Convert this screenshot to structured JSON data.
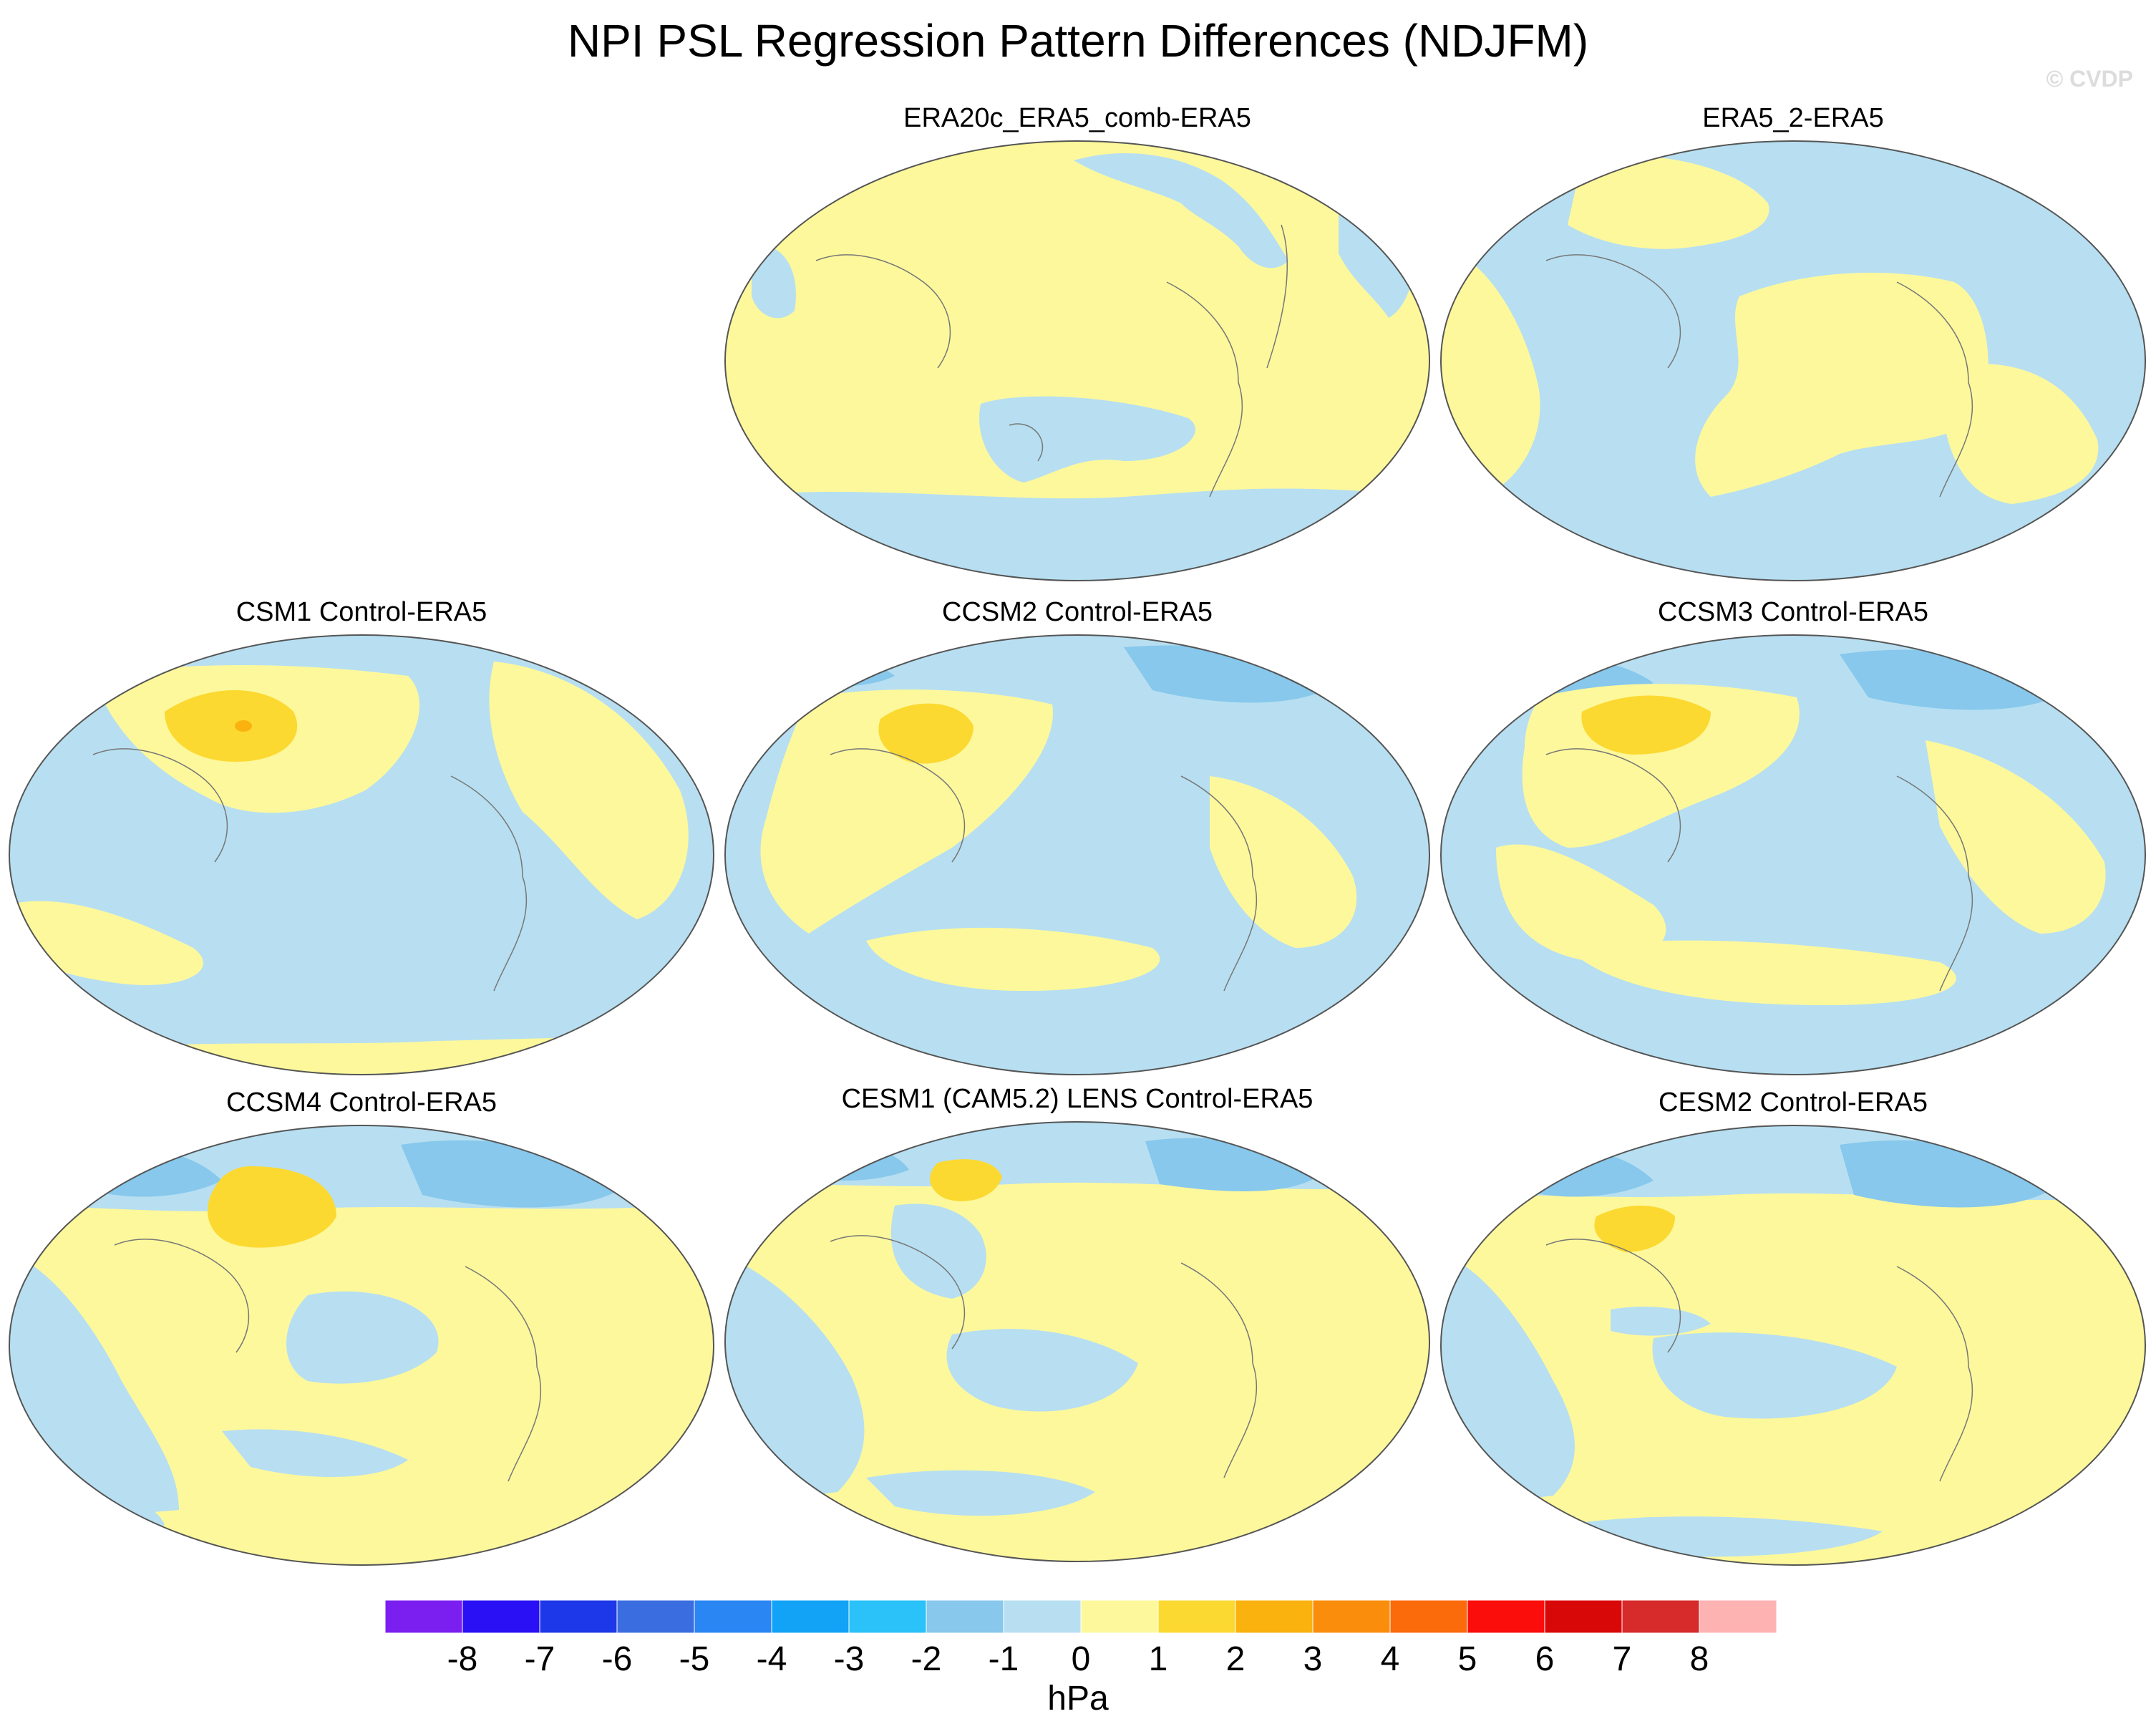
{
  "title": "NPI PSL Regression Pattern Differences (NDJFM)",
  "watermark": "© CVDP",
  "colors": {
    "ocean_neg": "#b7dff1",
    "land_pos": "#fdf89c",
    "pos2": "#fcd931",
    "pos3": "#f9b20e",
    "neg2": "#87c8ec",
    "coast": "#777777"
  },
  "panels": [
    {
      "title": "ERA20c_ERA5_comb-ERA5",
      "pos_max_hPa": 1,
      "neg_min_hPa": -1
    },
    {
      "title": "ERA5_2-ERA5",
      "pos_max_hPa": 1,
      "neg_min_hPa": -1
    },
    {
      "title": "CSM1 Control-ERA5",
      "pos_max_hPa": 3,
      "neg_min_hPa": -1
    },
    {
      "title": "CCSM2 Control-ERA5",
      "pos_max_hPa": 2,
      "neg_min_hPa": -2
    },
    {
      "title": "CCSM3 Control-ERA5",
      "pos_max_hPa": 2,
      "neg_min_hPa": -2
    },
    {
      "title": "CCSM4 Control-ERA5",
      "pos_max_hPa": 2,
      "neg_min_hPa": -2
    },
    {
      "title": "CESM1 (CAM5.2) LENS Control-ERA5",
      "pos_max_hPa": 2,
      "neg_min_hPa": -2
    },
    {
      "title": "CESM2 Control-ERA5",
      "pos_max_hPa": 2,
      "neg_min_hPa": -2
    }
  ],
  "colorbar": {
    "colors": [
      "#7b1ff0",
      "#2a10f5",
      "#1d38e8",
      "#3a6de0",
      "#2a86f3",
      "#12a3f7",
      "#2ac2f8",
      "#87c8ec",
      "#b7dff1",
      "#fdf89c",
      "#fcd931",
      "#f9b20e",
      "#fa8e0c",
      "#fb6a0b",
      "#fb0d0b",
      "#d90808",
      "#d72a2b",
      "#feb3b3"
    ],
    "labels": [
      "-8",
      "-7",
      "-6",
      "-5",
      "-4",
      "-3",
      "-2",
      "-1",
      "0",
      "1",
      "2",
      "3",
      "4",
      "5",
      "6",
      "7",
      "8"
    ],
    "units": "hPa"
  }
}
